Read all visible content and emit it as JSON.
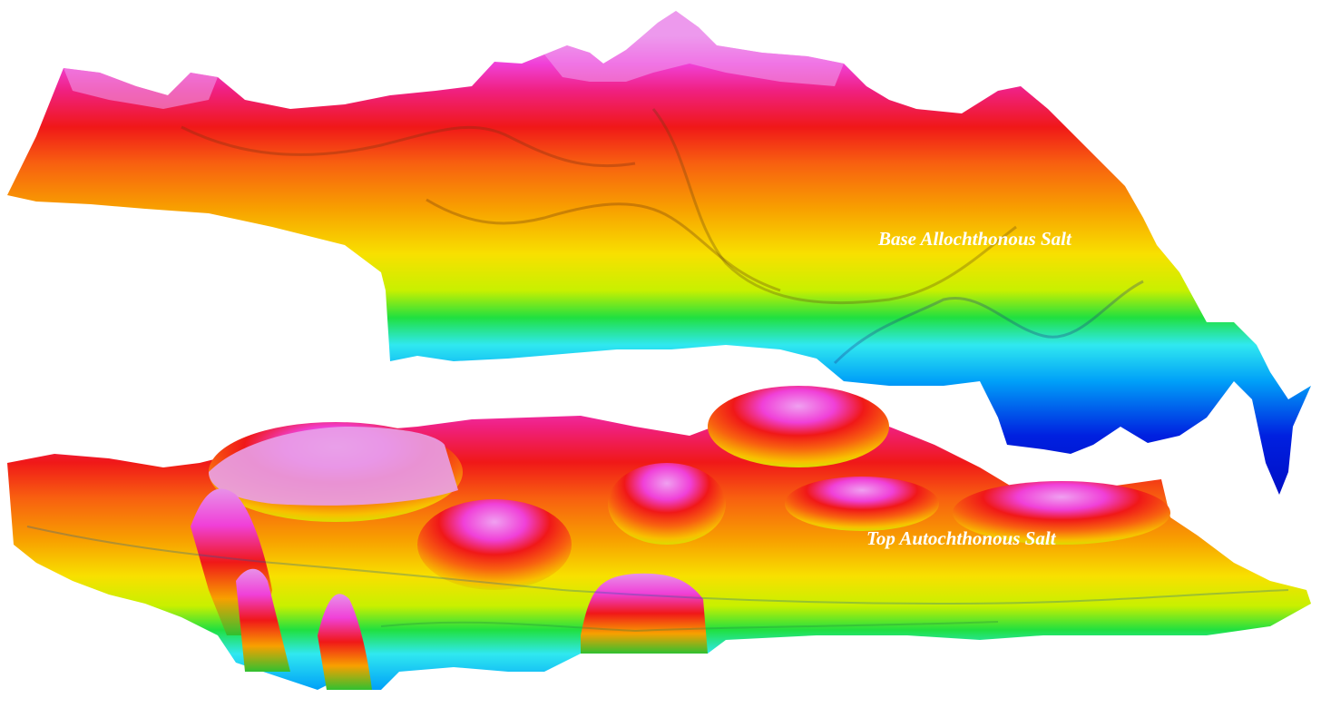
{
  "labels": {
    "upper_surface": "Base Allochthonous Salt",
    "lower_surface": "Top Autochthonous Salt"
  },
  "colors": {
    "background": "#ffffff",
    "label_text": "#ffffff",
    "depth_ramp": [
      "#0020e0",
      "#00a0f8",
      "#30e8f0",
      "#20e040",
      "#c8f000",
      "#f8e000",
      "#f8a000",
      "#f86010",
      "#f01818",
      "#f02080",
      "#f040d8",
      "#e890e8"
    ]
  }
}
